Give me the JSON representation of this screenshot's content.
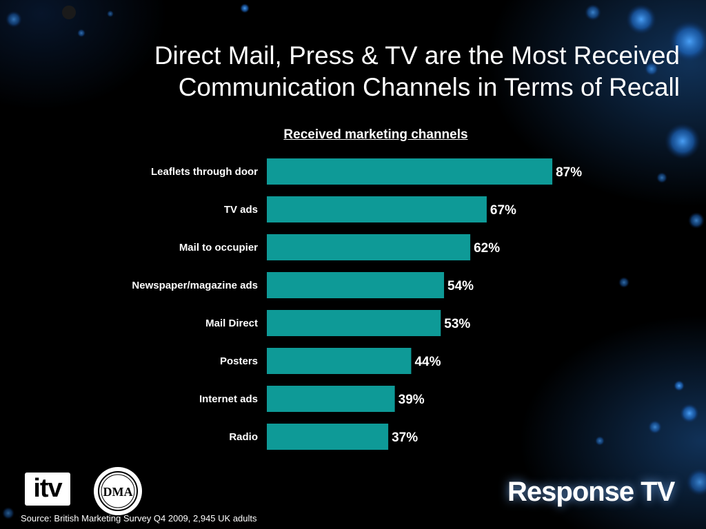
{
  "title": "Direct Mail, Press & TV are the Most Received Communication Channels in Terms of Recall",
  "chart_data": {
    "type": "bar",
    "orientation": "horizontal",
    "title": "Received marketing channels",
    "categories": [
      "Leaflets through door",
      "TV ads",
      "Mail to occupier",
      "Newspaper/magazine ads",
      "Mail Direct",
      "Posters",
      "Internet ads",
      "Radio"
    ],
    "values": [
      87,
      67,
      62,
      54,
      53,
      44,
      39,
      37
    ],
    "value_labels": [
      "87%",
      "67%",
      "62%",
      "54%",
      "53%",
      "44%",
      "39%",
      "37%"
    ],
    "xlim": [
      0,
      100
    ],
    "grid": false,
    "bar_color": "#0e9a97"
  },
  "source": "Source: British Marketing Survey Q4 2009, 2,945 UK adults",
  "logos": {
    "itv": "itv",
    "dma": "DMA",
    "brand": "Response TV"
  },
  "colors": {
    "background": "#000000",
    "text": "#ffffff",
    "bar": "#0e9a97"
  }
}
